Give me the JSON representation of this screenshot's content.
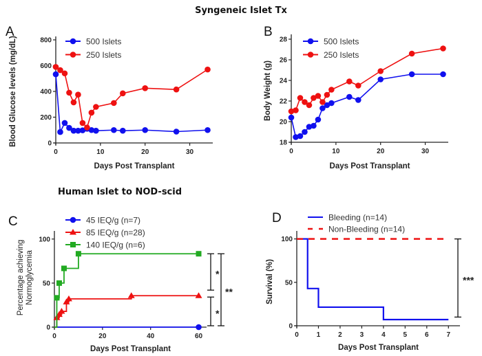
{
  "titles": {
    "top": "Syngeneic Islet Tx",
    "bottom": "Human Islet to NOD-scid"
  },
  "chart_data": [
    {
      "id": "A",
      "type": "line",
      "panel_label": "A",
      "xlabel": "Days Post Transplant",
      "ylabel": "Blood Glucose levels (mg/dL)",
      "xlim": [
        0,
        35
      ],
      "ylim": [
        0,
        800
      ],
      "xticks": [
        0,
        10,
        20,
        30
      ],
      "yticks": [
        0,
        200,
        400,
        600,
        800
      ],
      "legend_position": "top-left",
      "grid": false,
      "x": [
        0,
        1,
        2,
        3,
        4,
        5,
        6,
        7,
        8,
        9,
        13,
        15,
        20,
        27,
        34
      ],
      "series": [
        {
          "name": "500 Islets",
          "color": "#1010ee",
          "marker": "circle",
          "values": [
            533,
            85,
            155,
            117,
            95,
            95,
            98,
            110,
            100,
            95,
            100,
            95,
            100,
            88,
            100
          ]
        },
        {
          "name": "250 Islets",
          "color": "#ee1111",
          "marker": "circle",
          "values": [
            590,
            565,
            540,
            390,
            315,
            375,
            155,
            120,
            235,
            280,
            310,
            385,
            425,
            415,
            570
          ]
        }
      ]
    },
    {
      "id": "B",
      "type": "line",
      "panel_label": "B",
      "xlabel": "Days Post Transplant",
      "ylabel": "Body Weight (g)",
      "xlim": [
        0,
        35
      ],
      "ylim": [
        18,
        28
      ],
      "xticks": [
        0,
        10,
        20,
        30
      ],
      "yticks": [
        18,
        20,
        22,
        24,
        26,
        28
      ],
      "legend_position": "top-left",
      "grid": false,
      "x": [
        0,
        1,
        2,
        3,
        4,
        5,
        6,
        7,
        8,
        9,
        13,
        15,
        20,
        27,
        34
      ],
      "series": [
        {
          "name": "500 Islets",
          "color": "#1010ee",
          "marker": "circle",
          "values": [
            20.4,
            18.5,
            18.6,
            19.0,
            19.5,
            19.6,
            20.2,
            21.3,
            21.6,
            21.8,
            22.4,
            22.1,
            24.1,
            24.6,
            24.6
          ]
        },
        {
          "name": "250 Islets",
          "color": "#ee1111",
          "marker": "circle",
          "values": [
            21.0,
            21.1,
            22.3,
            21.9,
            21.6,
            22.3,
            22.5,
            21.9,
            22.6,
            23.1,
            23.9,
            23.5,
            24.9,
            26.6,
            27.1
          ]
        }
      ]
    },
    {
      "id": "C",
      "type": "line",
      "subtype": "step",
      "panel_label": "C",
      "xlabel": "Days Post Transplant",
      "ylabel": "Percentage achieving Normoglycemia",
      "ylabel_lines": [
        "Percentage achieving",
        "Normoglycemia"
      ],
      "xlim": [
        0,
        63
      ],
      "ylim": [
        0,
        110
      ],
      "xticks": [
        0,
        20,
        40,
        60
      ],
      "yticks": [
        0,
        50,
        100
      ],
      "legend_position": "top-left",
      "grid": false,
      "series": [
        {
          "name": "45 IEQ/g (n=7)",
          "color": "#1010ee",
          "marker": "circle",
          "steps": [
            [
              0,
              0
            ],
            [
              60,
              0
            ]
          ],
          "markers_at": [
            [
              60,
              0
            ]
          ]
        },
        {
          "name": "85 IEQ/g (n=28)",
          "color": "#ee1111",
          "marker": "triangle",
          "steps": [
            [
              0,
              0
            ],
            [
              1,
              10.7
            ],
            [
              2,
              14.3
            ],
            [
              3,
              17.9
            ],
            [
              5,
              28.6
            ],
            [
              6,
              32.1
            ],
            [
              32,
              35.7
            ],
            [
              60,
              35.7
            ]
          ],
          "markers_at": [
            [
              1,
              10.7
            ],
            [
              2,
              14.3
            ],
            [
              3,
              17.9
            ],
            [
              5,
              28.6
            ],
            [
              6,
              32.1
            ],
            [
              32,
              35.7
            ],
            [
              60,
              35.7
            ]
          ]
        },
        {
          "name": "140 IEQ/g (n=6)",
          "color": "#22aa22",
          "marker": "square",
          "steps": [
            [
              0,
              0
            ],
            [
              1,
              33.3
            ],
            [
              2,
              50
            ],
            [
              4,
              66.7
            ],
            [
              10,
              83.3
            ],
            [
              60,
              83.3
            ]
          ],
          "markers_at": [
            [
              1,
              33.3
            ],
            [
              2,
              50
            ],
            [
              4,
              66.7
            ],
            [
              10,
              83.3
            ],
            [
              60,
              83.3
            ]
          ]
        }
      ],
      "significance": [
        {
          "label": "*",
          "between": [
            "140 IEQ/g (n=6)",
            "85 IEQ/g (n=28)"
          ],
          "y_range": [
            42,
            83.3
          ]
        },
        {
          "label": "*",
          "between": [
            "85 IEQ/g (n=28)",
            "45 IEQ/g (n=7)"
          ],
          "y_range": [
            0,
            35.7
          ]
        },
        {
          "label": "**",
          "between": [
            "140 IEQ/g (n=6)",
            "45 IEQ/g (n=7)"
          ],
          "y_range": [
            0,
            83.3
          ]
        }
      ]
    },
    {
      "id": "D",
      "type": "line",
      "subtype": "step",
      "panel_label": "D",
      "xlabel": "Days Post Transplant",
      "ylabel": "Survival (%)",
      "xlim": [
        0,
        7.5
      ],
      "ylim": [
        0,
        110
      ],
      "xticks": [
        0,
        1,
        2,
        3,
        4,
        5,
        6,
        7
      ],
      "yticks": [
        0,
        50,
        100
      ],
      "legend_position": "top-left",
      "grid": false,
      "series": [
        {
          "name": "Bleeding (n=14)",
          "color": "#1010ee",
          "style": "solid",
          "steps": [
            [
              0,
              100
            ],
            [
              0.5,
              42.9
            ],
            [
              1,
              21.4
            ],
            [
              4,
              7.1
            ],
            [
              7,
              7.1
            ]
          ]
        },
        {
          "name": "Non-Bleeding (n=14)",
          "color": "#ee1111",
          "style": "dashed",
          "steps": [
            [
              0,
              100
            ],
            [
              7,
              100
            ]
          ]
        }
      ],
      "significance": [
        {
          "label": "***",
          "between": [
            "Non-Bleeding (n=14)",
            "Bleeding (n=14)"
          ],
          "y_range": [
            10,
            100
          ]
        }
      ]
    }
  ]
}
